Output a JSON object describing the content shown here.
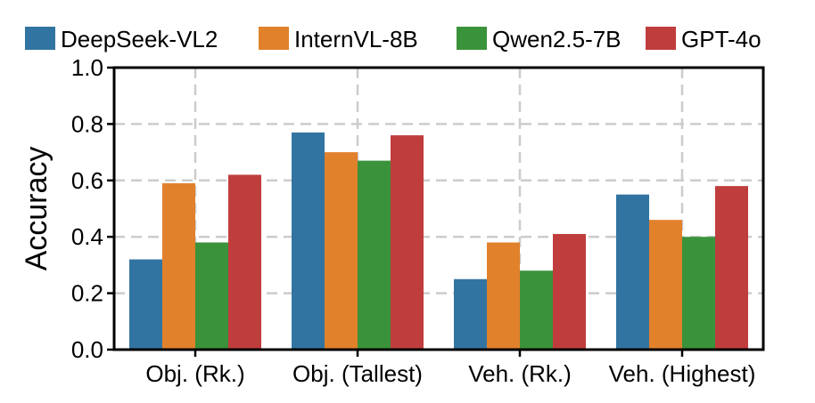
{
  "chart_data": {
    "type": "bar",
    "title": "",
    "xlabel": "",
    "ylabel": "Accuracy",
    "ylim": [
      0.0,
      1.0
    ],
    "yticks": [
      "0.0",
      "0.2",
      "0.4",
      "0.6",
      "0.8",
      "1.0"
    ],
    "grid": true,
    "legend_position": "top",
    "categories": [
      "Obj. (Rk.)",
      "Obj. (Tallest)",
      "Veh. (Rk.)",
      "Veh. (Highest)"
    ],
    "series": [
      {
        "name": "DeepSeek-VL2",
        "color": "#3274a1",
        "values": [
          0.32,
          0.77,
          0.25,
          0.55
        ]
      },
      {
        "name": "InternVL-8B",
        "color": "#e1812c",
        "values": [
          0.59,
          0.7,
          0.38,
          0.46
        ]
      },
      {
        "name": "Qwen2.5-7B",
        "color": "#3a923a",
        "values": [
          0.38,
          0.67,
          0.28,
          0.4
        ]
      },
      {
        "name": "GPT-4o",
        "color": "#c03d3e",
        "values": [
          0.62,
          0.76,
          0.41,
          0.58
        ]
      }
    ]
  }
}
